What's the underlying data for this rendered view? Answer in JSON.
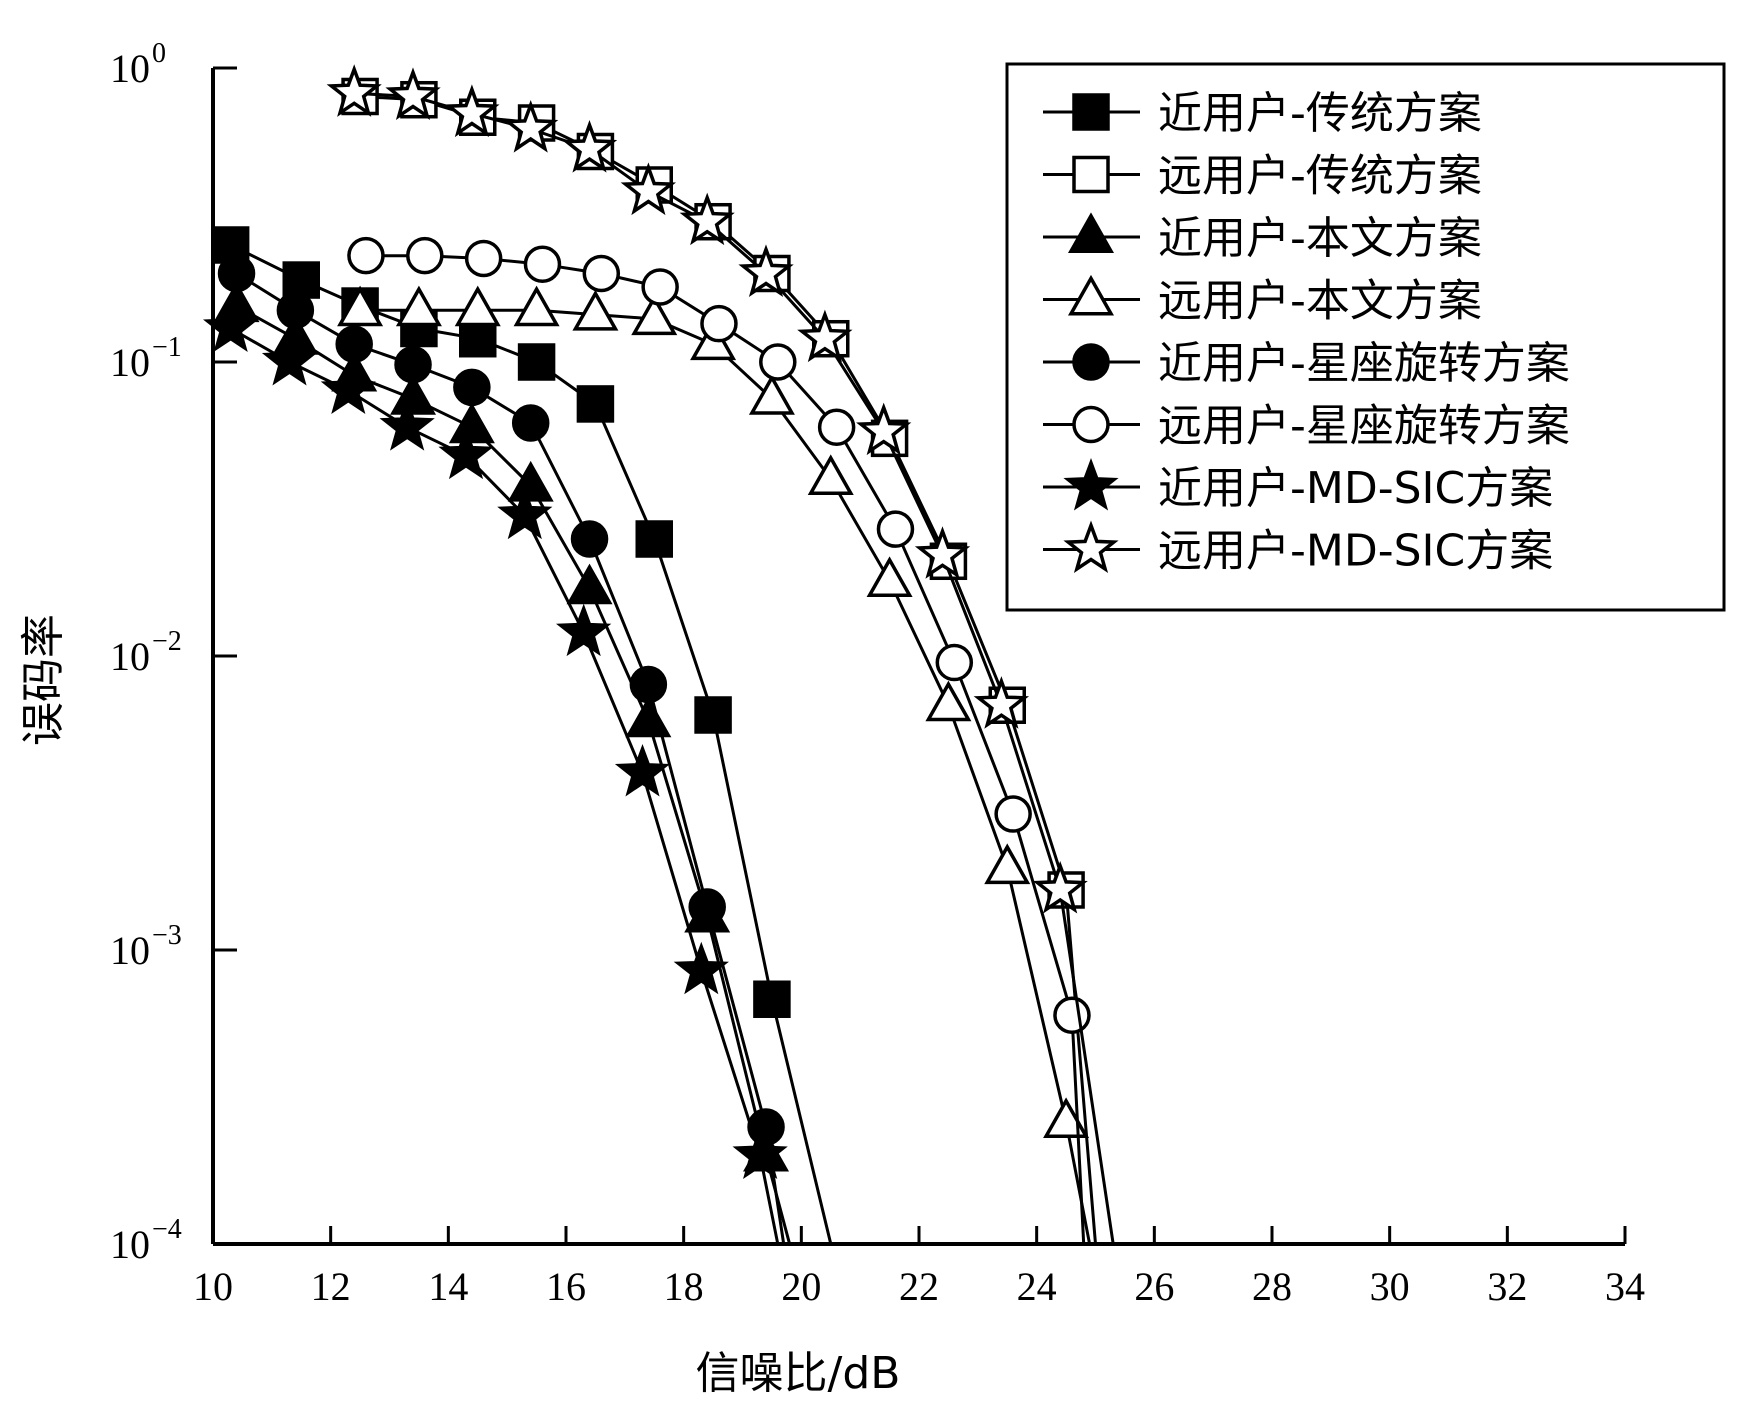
{
  "chart_data": {
    "type": "line",
    "title": "",
    "xlabel": "信噪比/dB",
    "ylabel": "误码率",
    "xlim": [
      10,
      34
    ],
    "ylim": [
      0.0001,
      1
    ],
    "yscale": "log",
    "grid": false,
    "legend_position": "top-right",
    "x_ticks": [
      "10",
      "12",
      "14",
      "16",
      "18",
      "20",
      "22",
      "24",
      "26",
      "28",
      "30",
      "32",
      "34"
    ],
    "y_ticks": [
      {
        "value": 1,
        "base": "10",
        "exp": "0"
      },
      {
        "value": 0.1,
        "base": "10",
        "exp": "−1"
      },
      {
        "value": 0.01,
        "base": "10",
        "exp": "−2"
      },
      {
        "value": 0.001,
        "base": "10",
        "exp": "−3"
      },
      {
        "value": 0.0001,
        "base": "10",
        "exp": "−4"
      }
    ],
    "series": [
      {
        "name": "近用户-传统方案",
        "marker": "square",
        "filled": true,
        "x": [
          10.3,
          11.5,
          12.5,
          13.5,
          14.5,
          15.5,
          16.5,
          17.5,
          18.5,
          19.5,
          20.5
        ],
        "y": [
          0.25,
          0.19,
          0.155,
          0.13,
          0.12,
          0.1,
          0.072,
          0.025,
          0.0063,
          0.00068,
          0.0001
        ]
      },
      {
        "name": "远用户-传统方案",
        "marker": "square",
        "filled": false,
        "x": [
          12.5,
          13.5,
          14.5,
          15.5,
          16.5,
          17.5,
          18.5,
          19.5,
          20.5,
          21.5,
          22.5,
          23.5,
          24.5,
          25.0
        ],
        "y": [
          0.8,
          0.78,
          0.68,
          0.65,
          0.52,
          0.4,
          0.3,
          0.2,
          0.12,
          0.055,
          0.021,
          0.0068,
          0.0016,
          0.0001
        ]
      },
      {
        "name": "近用户-本文方案",
        "marker": "triangle",
        "filled": true,
        "x": [
          10.4,
          11.4,
          12.4,
          13.4,
          14.4,
          15.4,
          16.4,
          17.4,
          18.4,
          19.4,
          19.8
        ],
        "y": [
          0.155,
          0.12,
          0.09,
          0.075,
          0.06,
          0.038,
          0.017,
          0.006,
          0.0013,
          0.0002,
          0.0001
        ]
      },
      {
        "name": "远用户-本文方案",
        "marker": "triangle",
        "filled": false,
        "x": [
          12.5,
          13.5,
          14.5,
          15.5,
          16.5,
          17.5,
          18.5,
          19.5,
          20.5,
          21.5,
          22.5,
          23.5,
          24.5,
          24.9
        ],
        "y": [
          0.15,
          0.15,
          0.15,
          0.15,
          0.145,
          0.14,
          0.115,
          0.075,
          0.04,
          0.018,
          0.0068,
          0.0019,
          0.00026,
          0.0001
        ]
      },
      {
        "name": "近用户-星座旋转方案",
        "marker": "circle",
        "filled": true,
        "x": [
          10.4,
          11.4,
          12.4,
          13.4,
          14.4,
          15.4,
          16.4,
          17.4,
          18.4,
          19.4,
          19.7
        ],
        "y": [
          0.2,
          0.15,
          0.115,
          0.098,
          0.082,
          0.062,
          0.025,
          0.008,
          0.0014,
          0.00025,
          0.0001
        ]
      },
      {
        "name": "远用户-星座旋转方案",
        "marker": "circle",
        "filled": false,
        "x": [
          12.6,
          13.6,
          14.6,
          15.6,
          16.6,
          17.6,
          18.6,
          19.6,
          20.6,
          21.6,
          22.6,
          23.6,
          24.6,
          24.8
        ],
        "y": [
          0.23,
          0.23,
          0.225,
          0.215,
          0.2,
          0.18,
          0.135,
          0.1,
          0.06,
          0.027,
          0.0095,
          0.0029,
          0.0006,
          0.0001
        ]
      },
      {
        "name": "近用户-MD-SIC方案",
        "marker": "star",
        "filled": true,
        "x": [
          10.3,
          11.3,
          12.3,
          13.3,
          14.3,
          15.3,
          16.3,
          17.3,
          18.3,
          19.3,
          19.6
        ],
        "y": [
          0.13,
          0.1,
          0.08,
          0.06,
          0.048,
          0.03,
          0.012,
          0.004,
          0.00085,
          0.0002,
          0.0001
        ]
      },
      {
        "name": "远用户-MD-SIC方案",
        "marker": "star",
        "filled": false,
        "x": [
          12.4,
          13.4,
          14.4,
          15.4,
          16.4,
          17.4,
          18.4,
          19.4,
          20.4,
          21.4,
          22.4,
          23.4,
          24.4,
          25.3
        ],
        "y": [
          0.82,
          0.8,
          0.7,
          0.62,
          0.53,
          0.38,
          0.3,
          0.2,
          0.12,
          0.058,
          0.022,
          0.0068,
          0.0016,
          0.0001
        ]
      }
    ]
  }
}
